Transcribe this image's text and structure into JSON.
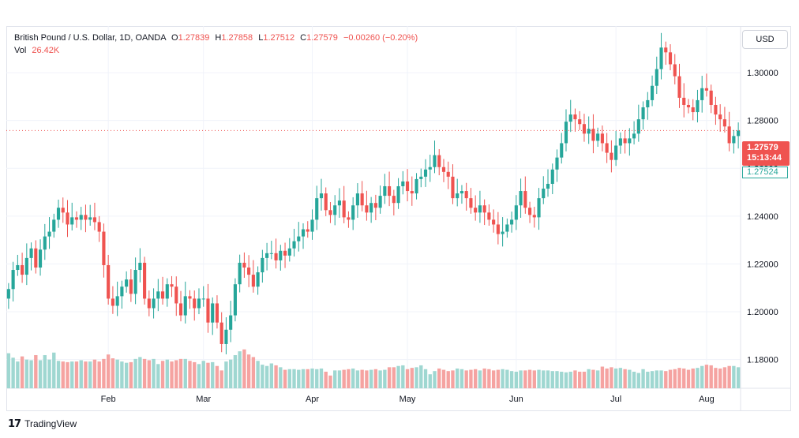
{
  "legend": {
    "symbol": "British Pound / U.S. Dollar, 1D, OANDA",
    "open_key": "O",
    "open": "1.27839",
    "high_key": "H",
    "high": "1.27858",
    "low_key": "L",
    "low": "1.27512",
    "close_key": "C",
    "close": "1.27579",
    "change": "−0.00260 (−0.20%)",
    "vol_label": "Vol",
    "vol_value": "26.42K"
  },
  "currency_button": "USD",
  "price_tag": {
    "price": "1.27579",
    "countdown": "15:13:44"
  },
  "low_tag": "1.27524",
  "brand": "TradingView",
  "colors": {
    "up": "#26a69a",
    "down": "#ef5350",
    "up_volume": "#9fd7d1",
    "down_volume": "#f5a3a1",
    "grid": "#f0f3fa"
  },
  "chart_data": {
    "type": "candlestick",
    "title": "",
    "ylim": [
      1.168,
      1.3195
    ],
    "y_ticks": [
      "1.18000",
      "1.20000",
      "1.22000",
      "1.24000",
      "1.26000",
      "1.28000",
      "1.30000"
    ],
    "x_tick_labels": [
      "Feb",
      "Mar",
      "Apr",
      "May",
      "Jun",
      "Jul",
      "Aug"
    ],
    "x_tick_bar_index": [
      22,
      43,
      67,
      88,
      112,
      134,
      154
    ],
    "current_price": 1.27579,
    "grid": true,
    "close": [
      1.2095,
      1.2175,
      1.2195,
      1.2155,
      1.2225,
      1.2265,
      1.2185,
      1.226,
      1.2315,
      1.2335,
      1.2385,
      1.2435,
      1.2415,
      1.2365,
      1.2395,
      1.2385,
      1.2405,
      1.2385,
      1.2395,
      1.2375,
      1.2335,
      1.2195,
      1.2055,
      1.2025,
      1.2065,
      1.2105,
      1.2135,
      1.2075,
      1.2175,
      1.2205,
      1.2055,
      1.2015,
      1.2055,
      1.2085,
      1.2055,
      1.2115,
      1.2105,
      1.2035,
      1.1985,
      1.2065,
      1.2055,
      1.2015,
      1.2055,
      1.2055,
      1.1955,
      1.2035,
      1.1955,
      1.1865,
      1.1925,
      1.1985,
      1.2115,
      1.2205,
      1.2185,
      1.2155,
      1.2105,
      1.2165,
      1.2225,
      1.2245,
      1.2245,
      1.2215,
      1.2255,
      1.2235,
      1.2265,
      1.2295,
      1.2315,
      1.2345,
      1.2335,
      1.2385,
      1.2475,
      1.2495,
      1.2425,
      1.2405,
      1.2445,
      1.2465,
      1.2395,
      1.2385,
      1.2445,
      1.2495,
      1.2445,
      1.2415,
      1.2455,
      1.2435,
      1.2485,
      1.2525,
      1.2485,
      1.2455,
      1.2525,
      1.2545,
      1.2505,
      1.2495,
      1.2555,
      1.2565,
      1.2595,
      1.2605,
      1.2655,
      1.2605,
      1.2585,
      1.2565,
      1.2475,
      1.2495,
      1.2505,
      1.2475,
      1.2435,
      1.2415,
      1.2445,
      1.2415,
      1.2385,
      1.2365,
      1.2325,
      1.2335,
      1.2365,
      1.2385,
      1.2445,
      1.2505,
      1.2435,
      1.2405,
      1.2395,
      1.2475,
      1.2515,
      1.2535,
      1.2595,
      1.2645,
      1.2705,
      1.2795,
      1.2825,
      1.2805,
      1.2785,
      1.2745,
      1.2765,
      1.2715,
      1.2745,
      1.2705,
      1.2665,
      1.2635,
      1.2695,
      1.2725,
      1.2705,
      1.2725,
      1.2745,
      1.2805,
      1.2855,
      1.2885,
      1.2945,
      1.3015,
      1.3105,
      1.3085,
      1.3035,
      1.2985,
      1.2895,
      1.2865,
      1.2855,
      1.2835,
      1.2885,
      1.2935,
      1.2925,
      1.2865,
      1.2825,
      1.2805,
      1.2775,
      1.2705,
      1.2735,
      1.27579
    ],
    "volume_relative": [
      0.55,
      0.48,
      0.42,
      0.5,
      0.45,
      0.44,
      0.52,
      0.44,
      0.52,
      0.45,
      0.56,
      0.43,
      0.42,
      0.41,
      0.42,
      0.42,
      0.44,
      0.42,
      0.42,
      0.45,
      0.42,
      0.46,
      0.53,
      0.47,
      0.45,
      0.42,
      0.4,
      0.41,
      0.46,
      0.49,
      0.46,
      0.44,
      0.46,
      0.38,
      0.43,
      0.45,
      0.42,
      0.44,
      0.46,
      0.46,
      0.43,
      0.41,
      0.38,
      0.43,
      0.4,
      0.41,
      0.35,
      0.28,
      0.42,
      0.45,
      0.52,
      0.58,
      0.61,
      0.53,
      0.49,
      0.43,
      0.37,
      0.35,
      0.39,
      0.36,
      0.33,
      0.29,
      0.3,
      0.3,
      0.29,
      0.3,
      0.3,
      0.31,
      0.3,
      0.31,
      0.26,
      0.2,
      0.28,
      0.28,
      0.29,
      0.3,
      0.31,
      0.28,
      0.29,
      0.28,
      0.29,
      0.3,
      0.28,
      0.29,
      0.33,
      0.33,
      0.35,
      0.36,
      0.3,
      0.32,
      0.33,
      0.36,
      0.3,
      0.22,
      0.27,
      0.31,
      0.29,
      0.27,
      0.28,
      0.31,
      0.3,
      0.28,
      0.29,
      0.3,
      0.28,
      0.31,
      0.3,
      0.28,
      0.29,
      0.3,
      0.29,
      0.27,
      0.26,
      0.28,
      0.28,
      0.29,
      0.28,
      0.29,
      0.28,
      0.28,
      0.27,
      0.27,
      0.26,
      0.25,
      0.26,
      0.28,
      0.26,
      0.26,
      0.3,
      0.29,
      0.28,
      0.34,
      0.31,
      0.33,
      0.31,
      0.32,
      0.3,
      0.29,
      0.26,
      0.24,
      0.3,
      0.26,
      0.27,
      0.28,
      0.28,
      0.27,
      0.29,
      0.3,
      0.32,
      0.31,
      0.29,
      0.31,
      0.32,
      0.35,
      0.37,
      0.36,
      0.32,
      0.31,
      0.33,
      0.35,
      0.35,
      0.33
    ]
  }
}
